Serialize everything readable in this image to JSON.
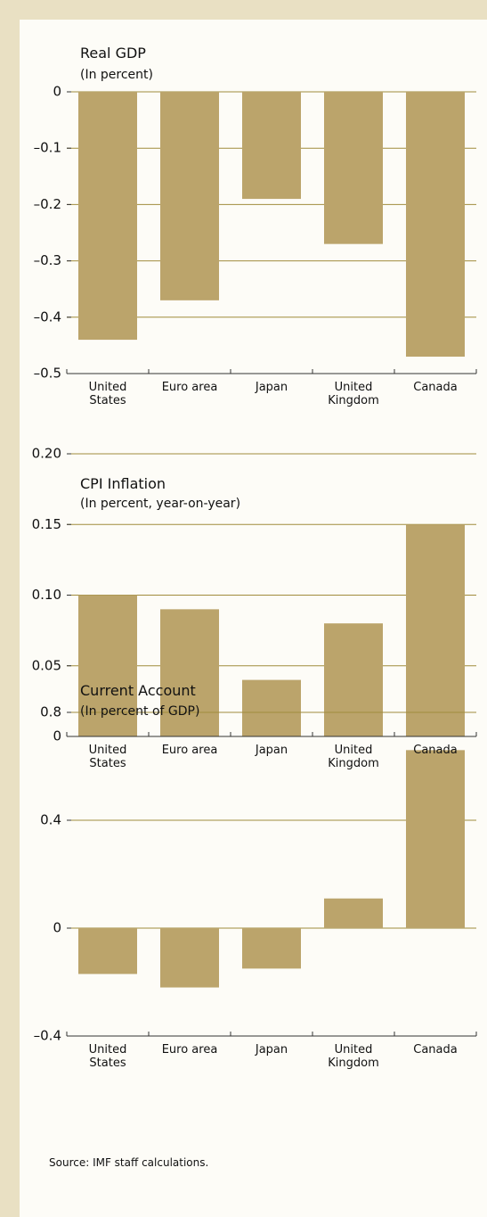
{
  "chart_data": [
    {
      "type": "bar",
      "title": "Real GDP",
      "subtitle": "(In percent)",
      "categories": [
        "United States",
        "Euro area",
        "Japan",
        "United Kingdom",
        "Canada"
      ],
      "values": [
        -0.44,
        -0.37,
        -0.19,
        -0.27,
        -0.47
      ],
      "color": "#bba46b",
      "ylim": [
        -0.5,
        0
      ],
      "yticks": [
        0,
        {
          "value": -0.1,
          "label": "–0.1"
        },
        {
          "value": -0.2,
          "label": "–0.2"
        },
        {
          "value": -0.3,
          "label": "–0.3"
        },
        {
          "value": -0.4,
          "label": "–0.4"
        },
        {
          "value": -0.5,
          "label": "–0.5"
        }
      ],
      "grid": true
    },
    {
      "type": "bar",
      "title": "CPI Inflation",
      "subtitle": "(In percent, year-on-year)",
      "categories": [
        "United States",
        "Euro area",
        "Japan",
        "United Kingdom",
        "Canada"
      ],
      "values": [
        0.1,
        0.09,
        0.04,
        0.08,
        0.15
      ],
      "color": "#bba46b",
      "ylim": [
        0,
        0.2
      ],
      "yticks": [
        0,
        0.05,
        {
          "value": 0.1,
          "label": "0.10"
        },
        0.15,
        {
          "value": 0.2,
          "label": "0.20"
        }
      ],
      "grid": true
    },
    {
      "type": "bar",
      "title": "Current Account",
      "subtitle": "(In percent of GDP)",
      "categories": [
        "United States",
        "Euro area",
        "Japan",
        "United Kingdom",
        "Canada"
      ],
      "values": [
        -0.17,
        -0.22,
        -0.15,
        0.11,
        0.66
      ],
      "color": "#bba46b",
      "ylim": [
        -0.4,
        0.8
      ],
      "yticks": [
        {
          "value": -0.4,
          "label": "–0.4"
        },
        0,
        0.4,
        0.8
      ],
      "grid": true
    }
  ],
  "source": "Source: IMF staff calculations."
}
